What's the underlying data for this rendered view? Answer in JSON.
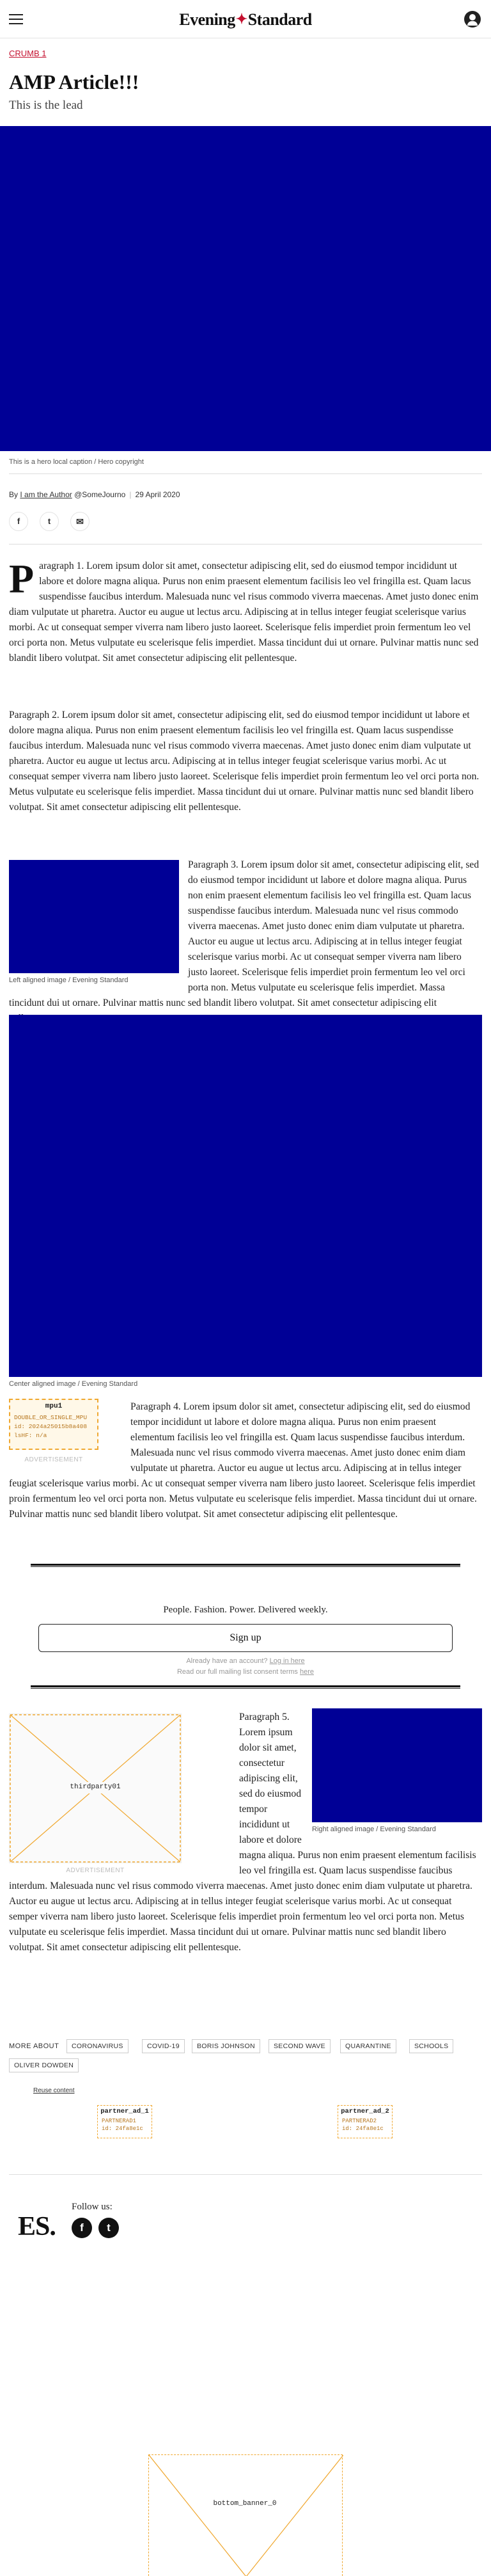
{
  "header": {
    "logo_left": "Evening",
    "logo_amp": "✦",
    "logo_right": "Standard",
    "menu_icon": "hamburger-menu-icon",
    "account_icon": "user-account-icon"
  },
  "breadcrumb": "CRUMB 1",
  "article": {
    "title": "AMP Article!!!",
    "lead": "This is the lead",
    "hero_caption": "This is a hero local caption / Hero copyright",
    "byline": {
      "prefix": "By",
      "author": "I am the Author",
      "handle": "@SomeJourno",
      "date": "29 April 2020"
    },
    "share": [
      {
        "icon": "facebook-icon",
        "glyph": "f"
      },
      {
        "icon": "twitter-icon",
        "glyph": "t"
      },
      {
        "icon": "email-icon",
        "glyph": "✉"
      }
    ],
    "p1_drop": "P",
    "p1": "aragraph 1. Lorem ipsum dolor sit amet, consectetur adipiscing elit, sed do eiusmod tempor incididunt ut labore et dolore magna aliqua. Purus non enim praesent elementum facilisis leo vel fringilla est. Quam lacus suspendisse faucibus interdum. Malesuada nunc vel risus commodo viverra maecenas. Amet justo donec enim diam vulputate ut pharetra. Auctor eu augue ut lectus arcu. Adipiscing at in tellus integer feugiat scelerisque varius morbi. Ac ut consequat semper viverra nam libero justo laoreet. Scelerisque felis imperdiet proin fermentum leo vel orci porta non. Metus vulputate eu scelerisque felis imperdiet. Massa tincidunt dui ut ornare. Pulvinar mattis nunc sed blandit libero volutpat. Sit amet consectetur adipiscing elit pellentesque.",
    "p2": "Paragraph 2. Lorem ipsum dolor sit amet, consectetur adipiscing elit, sed do eiusmod tempor incididunt ut labore et dolore magna aliqua. Purus non enim praesent elementum facilisis leo vel fringilla est. Quam lacus suspendisse faucibus interdum. Malesuada nunc vel risus commodo viverra maecenas. Amet justo donec enim diam vulputate ut pharetra. Auctor eu augue ut lectus arcu. Adipiscing at in tellus integer feugiat scelerisque varius morbi. Ac ut consequat semper viverra nam libero justo laoreet. Scelerisque felis imperdiet proin fermentum leo vel orci porta non. Metus vulputate eu scelerisque felis imperdiet. Massa tincidunt dui ut ornare. Pulvinar mattis nunc sed blandit libero volutpat. Sit amet consectetur adipiscing elit pellentesque.",
    "img3_caption": "Left aligned image / Evening Standard",
    "p3": "Paragraph 3. Lorem ipsum dolor sit amet, consectetur adipiscing elit, sed do eiusmod tempor incididunt ut labore et dolore magna aliqua. Purus non enim praesent elementum facilisis leo vel fringilla est. Quam lacus suspendisse faucibus interdum. Malesuada nunc vel risus commodo viverra maecenas. Amet justo donec enim diam vulputate ut pharetra. Auctor eu augue ut lectus arcu. Adipiscing at in tellus integer feugiat scelerisque varius morbi. Ac ut consequat semper viverra nam libero justo laoreet. Scelerisque felis imperdiet proin fermentum leo vel orci porta non. Metus vulputate eu scelerisque felis imperdiet. Massa tincidunt dui ut ornare. Pulvinar mattis nunc sed blandit libero volutpat. Sit amet consectetur adipiscing elit pellentesque.",
    "img4_caption": "Center aligned image / Evening Standard",
    "p4": "Paragraph 4. Lorem ipsum dolor sit amet, consectetur adipiscing elit, sed do eiusmod tempor incididunt ut labore et dolore magna aliqua. Purus non enim praesent elementum facilisis leo vel fringilla est. Quam lacus suspendisse faucibus interdum. Malesuada nunc vel risus commodo viverra maecenas. Amet justo donec enim diam vulputate ut pharetra. Auctor eu augue ut lectus arcu. Adipiscing at in tellus integer feugiat scelerisque varius morbi. Ac ut consequat semper viverra nam libero justo laoreet. Scelerisque felis imperdiet proin fermentum leo vel orci porta non. Metus vulputate eu scelerisque felis imperdiet. Massa tincidunt dui ut ornare. Pulvinar mattis nunc sed blandit libero volutpat. Sit amet consectetur adipiscing elit pellentesque.",
    "img5_caption": "Right aligned image / Evening Standard",
    "p5": "Paragraph 5. Lorem ipsum dolor sit amet, consectetur adipiscing elit, sed do eiusmod tempor incididunt ut labore et dolore magna aliqua. Purus non enim praesent elementum facilisis leo vel fringilla est. Quam lacus suspendisse faucibus interdum. Malesuada nunc vel risus commodo viverra maecenas. Amet justo donec enim diam vulputate ut pharetra. Auctor eu augue ut lectus arcu. Adipiscing at in tellus integer feugiat scelerisque varius morbi. Ac ut consequat semper viverra nam libero justo laoreet. Scelerisque felis imperdiet proin fermentum leo vel orci porta non. Metus vulputate eu scelerisque felis imperdiet. Massa tincidunt dui ut ornare. Pulvinar mattis nunc sed blandit libero volutpat. Sit amet consectetur adipiscing elit pellentesque."
  },
  "ads": {
    "mpu1": {
      "title": "mpu1",
      "line1": "DOUBLE_OR_SINGLE_MPU",
      "line2": "id: 2024a25015b8a408",
      "line3": "lsHF: n/a",
      "label": "ADVERTISEMENT"
    },
    "thirdparty": {
      "title": "thirdparty01",
      "label": "ADVERTISEMENT"
    },
    "partner1": {
      "title": "partner_ad_1",
      "line1": "PARTNERAD1",
      "line2": "id: 24fa8e1c"
    },
    "partner2": {
      "title": "partner_ad_2",
      "line1": "PARTNERAD2",
      "line2": "id: 24fa8e1c"
    },
    "bottom": {
      "title": "bottom_banner_0"
    }
  },
  "newsletter": {
    "tagline": "People. Fashion. Power. Delivered weekly.",
    "button": "Sign up",
    "account_prefix": "Already have an account?",
    "account_link": "Log in here",
    "terms_prefix": "Read our full mailing list consent terms",
    "terms_link": "here"
  },
  "more_about": {
    "label": "MORE ABOUT",
    "tags": [
      "CORONAVIRUS",
      "COVID-19",
      "BORIS JOHNSON",
      "SECOND WAVE",
      "QUARANTINE",
      "SCHOOLS",
      "OLIVER DOWDEN"
    ]
  },
  "reuse": "Reuse content",
  "footer": {
    "logo": "ES.",
    "follow": "Follow us:",
    "social": [
      {
        "icon": "facebook-icon",
        "glyph": "f"
      },
      {
        "icon": "twitter-icon",
        "glyph": "t"
      }
    ]
  },
  "colors": {
    "accent": "#c4102f",
    "image_placeholder": "#000096",
    "ad_border": "#f0a830"
  }
}
